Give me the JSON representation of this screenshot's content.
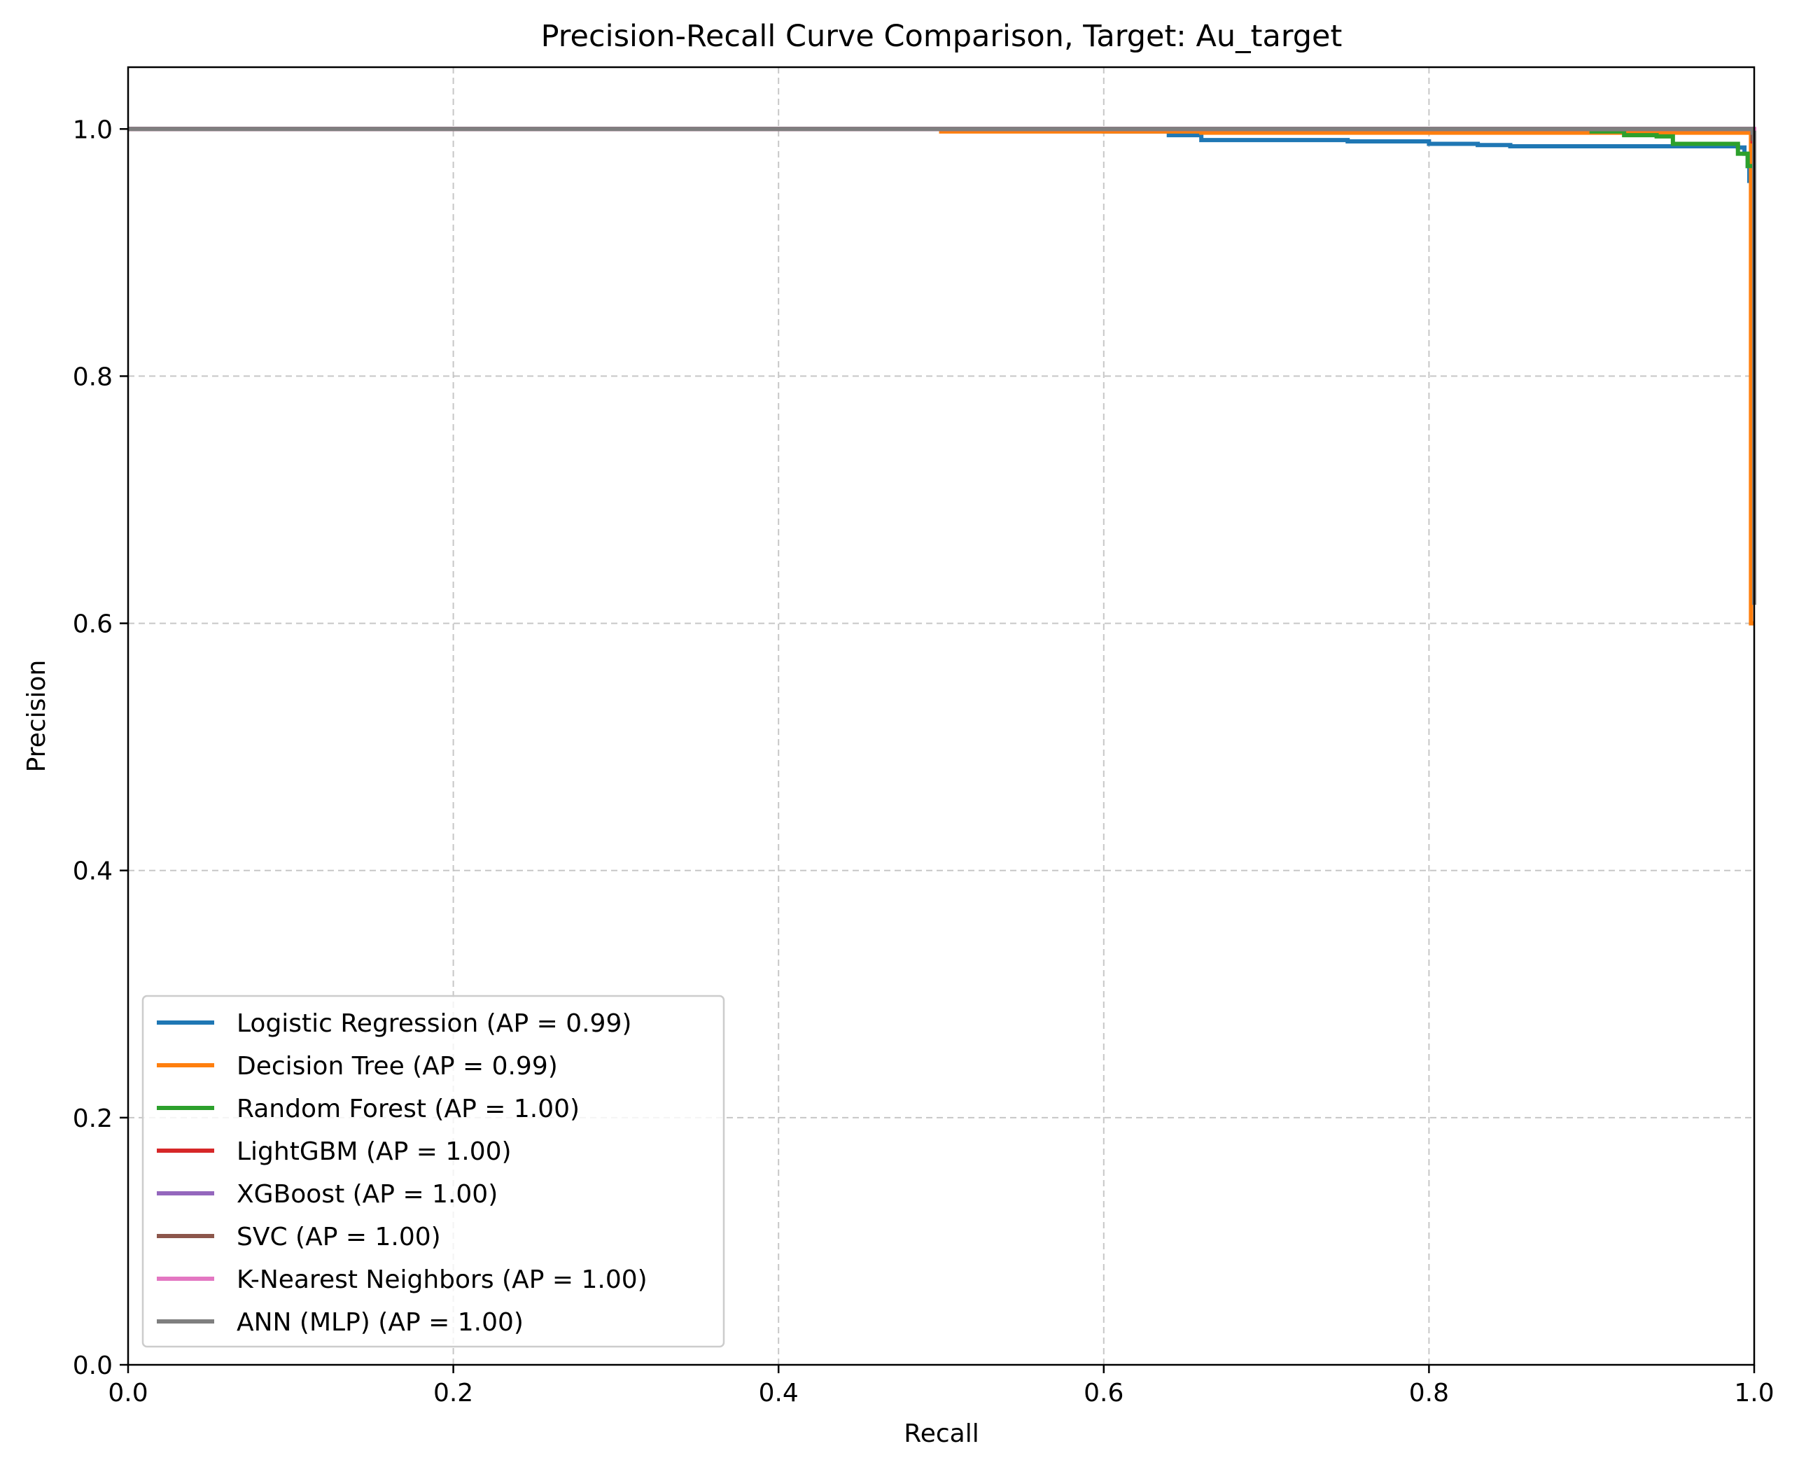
{
  "chart_data": {
    "type": "line",
    "title": "Precision-Recall Curve Comparison, Target: Au_target",
    "xlabel": "Recall",
    "ylabel": "Precision",
    "xlim": [
      0.0,
      1.0
    ],
    "ylim": [
      0.0,
      1.05
    ],
    "xticks": [
      "0.0",
      "0.2",
      "0.4",
      "0.6",
      "0.8",
      "1.0"
    ],
    "yticks": [
      "0.0",
      "0.2",
      "0.4",
      "0.6",
      "0.8",
      "1.0"
    ],
    "grid": true,
    "legend_position": "lower-left",
    "series": [
      {
        "name": "Logistic Regression (AP = 0.99)",
        "color": "#1f77b4",
        "points": [
          [
            0.0,
            1.0
          ],
          [
            0.5,
            0.999
          ],
          [
            0.6,
            0.998
          ],
          [
            0.64,
            0.995
          ],
          [
            0.66,
            0.991
          ],
          [
            0.7,
            0.991
          ],
          [
            0.75,
            0.99
          ],
          [
            0.8,
            0.988
          ],
          [
            0.83,
            0.987
          ],
          [
            0.85,
            0.986
          ],
          [
            0.9,
            0.986
          ],
          [
            0.95,
            0.986
          ],
          [
            0.99,
            0.985
          ],
          [
            0.994,
            0.98
          ],
          [
            0.996,
            0.97
          ],
          [
            0.997,
            0.958
          ],
          [
            1.0,
            0.957
          ]
        ]
      },
      {
        "name": "Decision Tree (AP = 0.99)",
        "color": "#ff7f0e",
        "points": [
          [
            0.0,
            1.0
          ],
          [
            0.5,
            0.998
          ],
          [
            0.66,
            0.997
          ],
          [
            0.9,
            0.997
          ],
          [
            0.997,
            0.997
          ],
          [
            0.998,
            0.6
          ],
          [
            1.0,
            0.6
          ]
        ]
      },
      {
        "name": "Random Forest (AP = 1.00)",
        "color": "#2ca02c",
        "points": [
          [
            0.0,
            1.0
          ],
          [
            0.85,
            1.0
          ],
          [
            0.9,
            0.998
          ],
          [
            0.92,
            0.995
          ],
          [
            0.94,
            0.994
          ],
          [
            0.95,
            0.988
          ],
          [
            0.97,
            0.988
          ],
          [
            0.985,
            0.988
          ],
          [
            0.99,
            0.98
          ],
          [
            0.995,
            0.98
          ],
          [
            0.996,
            0.97
          ],
          [
            1.0,
            0.97
          ]
        ]
      },
      {
        "name": "LightGBM (AP = 1.00)",
        "color": "#d62728",
        "points": [
          [
            0.0,
            1.0
          ],
          [
            0.997,
            1.0
          ],
          [
            0.999,
            0.99
          ],
          [
            1.0,
            0.985
          ]
        ]
      },
      {
        "name": "XGBoost (AP = 1.00)",
        "color": "#9467bd",
        "points": [
          [
            0.0,
            1.0
          ],
          [
            0.997,
            1.0
          ],
          [
            0.999,
            0.995
          ],
          [
            1.0,
            0.99
          ]
        ]
      },
      {
        "name": "SVC (AP = 1.00)",
        "color": "#8c564b",
        "points": [
          [
            0.0,
            1.0
          ],
          [
            0.997,
            1.0
          ],
          [
            0.999,
            0.992
          ],
          [
            1.0,
            0.99
          ]
        ]
      },
      {
        "name": "K-Nearest Neighbors (AP = 1.00)",
        "color": "#e377c2",
        "points": [
          [
            0.0,
            1.0
          ],
          [
            0.998,
            1.0
          ],
          [
            1.0,
            0.995
          ]
        ]
      },
      {
        "name": "ANN (MLP) (AP = 1.00)",
        "color": "#7f7f7f",
        "points": [
          [
            0.0,
            1.0
          ],
          [
            0.997,
            1.0
          ],
          [
            0.999,
            0.997
          ],
          [
            1.0,
            0.995
          ],
          [
            1.0,
            0.615
          ]
        ]
      }
    ]
  }
}
